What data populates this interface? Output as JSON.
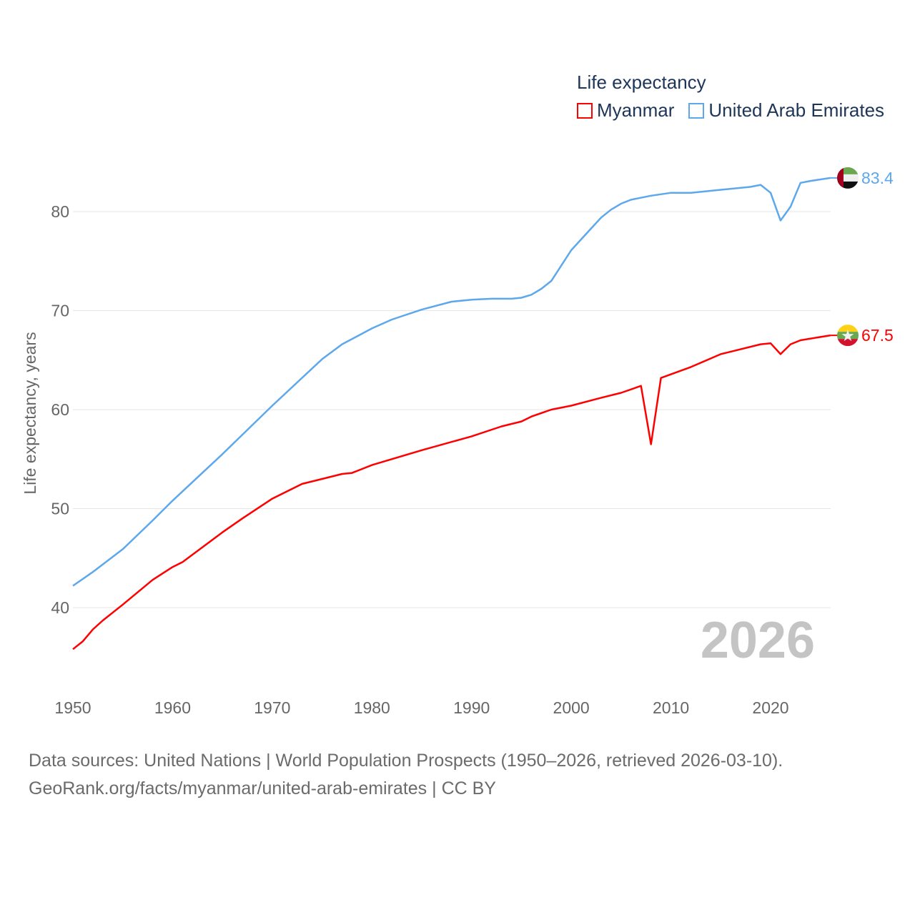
{
  "chart_data": {
    "type": "line",
    "title": "Life expectancy",
    "xlabel": "",
    "ylabel": "Life expectancy, years",
    "xlim": [
      1950,
      2026
    ],
    "ylim": [
      34,
      86
    ],
    "x_ticks": [
      "1950",
      "1960",
      "1970",
      "1980",
      "1990",
      "2000",
      "2010",
      "2020"
    ],
    "y_ticks": [
      "40",
      "50",
      "60",
      "70",
      "80"
    ],
    "grid": true,
    "legend_placement": "top-right",
    "year_label": "2026",
    "series": [
      {
        "name": "Myanmar",
        "color": "#ff0000",
        "end_label": "67.5",
        "x": [
          1950,
          1951,
          1952,
          1953,
          1955,
          1958,
          1960,
          1961,
          1965,
          1967,
          1970,
          1973,
          1975,
          1977,
          1978,
          1980,
          1985,
          1990,
          1993,
          1995,
          1996,
          1998,
          2000,
          2003,
          2005,
          2007,
          2008,
          2009,
          2012,
          2015,
          2019,
          2020,
          2021,
          2022,
          2023,
          2026
        ],
        "values": [
          35.8,
          36.6,
          37.8,
          38.7,
          40.3,
          42.8,
          44.1,
          44.6,
          47.6,
          49.0,
          51.0,
          52.5,
          53.0,
          53.5,
          53.6,
          54.4,
          55.9,
          57.3,
          58.3,
          58.8,
          59.3,
          60.0,
          60.4,
          61.2,
          61.7,
          62.4,
          56.5,
          63.2,
          64.3,
          65.6,
          66.6,
          66.7,
          65.6,
          66.6,
          67.0,
          67.5
        ]
      },
      {
        "name": "United Arab Emirates",
        "color": "#5da8ec",
        "end_label": "83.4",
        "x": [
          1950,
          1952,
          1955,
          1958,
          1960,
          1965,
          1970,
          1975,
          1977,
          1980,
          1982,
          1985,
          1988,
          1990,
          1992,
          1994,
          1995,
          1996,
          1997,
          1998,
          2000,
          2002,
          2003,
          2004,
          2005,
          2006,
          2008,
          2010,
          2012,
          2015,
          2018,
          2019,
          2020,
          2021,
          2022,
          2023,
          2024,
          2026
        ],
        "values": [
          42.2,
          43.6,
          45.9,
          48.8,
          50.8,
          55.5,
          60.4,
          65.1,
          66.6,
          68.2,
          69.1,
          70.1,
          70.9,
          71.1,
          71.2,
          71.2,
          71.3,
          71.6,
          72.2,
          73.0,
          76.1,
          78.3,
          79.4,
          80.2,
          80.8,
          81.2,
          81.6,
          81.9,
          81.9,
          82.2,
          82.5,
          82.7,
          81.9,
          79.1,
          80.5,
          82.9,
          83.1,
          83.4
        ]
      }
    ]
  },
  "legend": {
    "title": "Life expectancy",
    "items": [
      "Myanmar",
      "United Arab Emirates"
    ]
  },
  "footer": {
    "line1": "Data sources: United Nations | World Population Prospects (1950–2026, retrieved 2026-03-10).",
    "line2": "GeoRank.org/facts/myanmar/united-arab-emirates | CC BY"
  }
}
